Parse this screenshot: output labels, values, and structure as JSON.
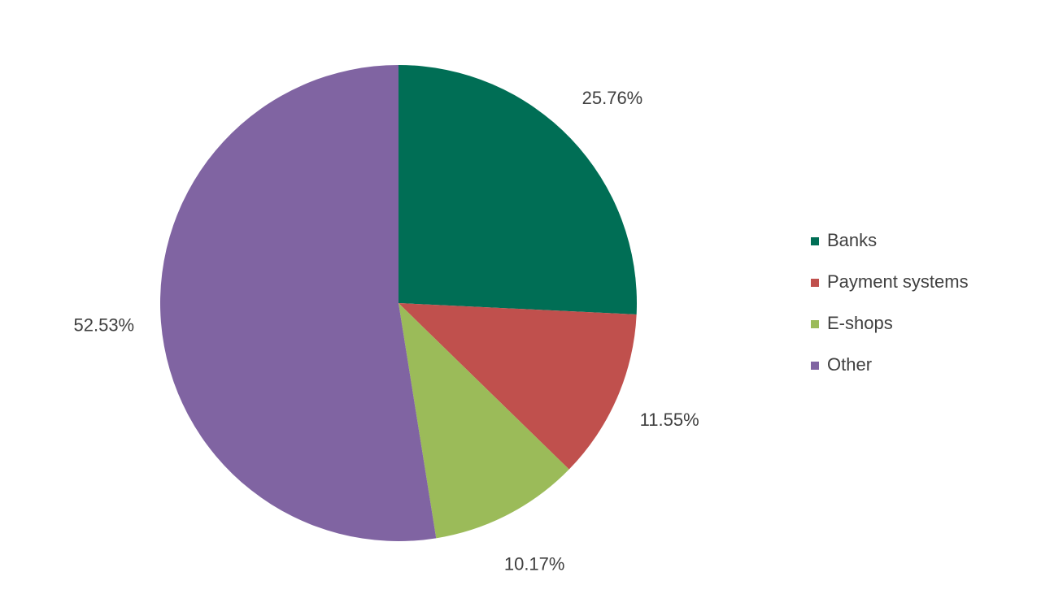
{
  "chart_data": {
    "type": "pie",
    "categories": [
      "Banks",
      "Payment systems",
      "E-shops",
      "Other"
    ],
    "values": [
      25.76,
      11.55,
      10.17,
      52.53
    ],
    "value_labels": [
      "25.76%",
      "11.55%",
      "10.17%",
      "52.53%"
    ],
    "colors": [
      "#006e55",
      "#c0504d",
      "#9bbb59",
      "#8064a2"
    ],
    "legend": "right"
  }
}
